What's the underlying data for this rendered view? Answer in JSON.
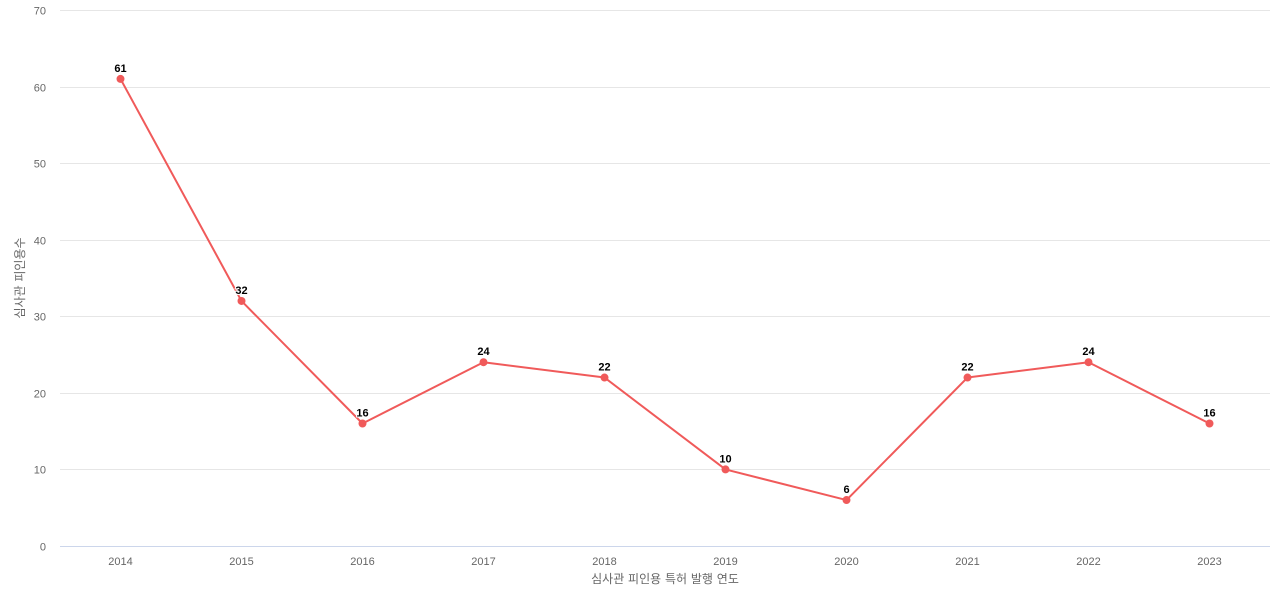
{
  "chart_data": {
    "type": "line",
    "title": "",
    "xlabel": "심사관 피인용 특허 발행 연도",
    "ylabel": "심사관 피인용수",
    "categories": [
      "2014",
      "2015",
      "2016",
      "2017",
      "2018",
      "2019",
      "2020",
      "2021",
      "2022",
      "2023"
    ],
    "series": [
      {
        "name": "심사관 피인용수",
        "values": [
          61,
          32,
          16,
          24,
          22,
          10,
          6,
          22,
          24,
          16
        ],
        "color": "#f05a5a"
      }
    ],
    "ylim": [
      0,
      70
    ],
    "yticks": [
      0,
      10,
      20,
      30,
      40,
      50,
      60,
      70
    ],
    "grid": true,
    "legend": "none",
    "data_labels": true
  },
  "colors": {
    "line": "#f05a5a",
    "grid": "#e6e6e6",
    "baseline": "#ccd6eb",
    "tick_text": "#666666",
    "label_text": "#000000"
  }
}
